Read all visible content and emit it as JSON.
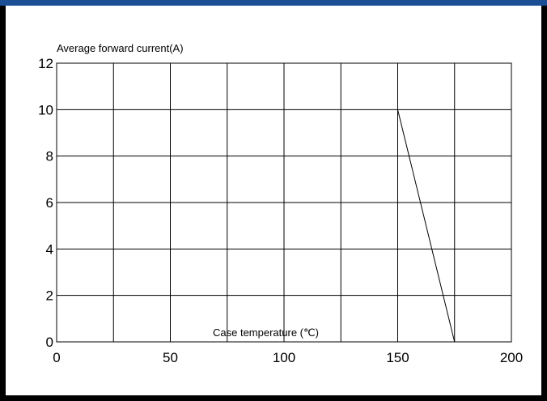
{
  "chart_data": {
    "type": "line",
    "title": "",
    "ylabel": "Average forward current(A)",
    "xlabel": "Case temperature (℃)",
    "xlim": [
      0,
      200
    ],
    "ylim": [
      0,
      12
    ],
    "x_ticks": [
      0,
      50,
      100,
      150,
      200
    ],
    "y_ticks": [
      0,
      2,
      4,
      6,
      8,
      10,
      12
    ],
    "grid": true,
    "grid_x_step": 25,
    "grid_y_step": 2,
    "series": [
      {
        "x": [
          150,
          175
        ],
        "y": [
          10,
          0
        ],
        "color": "#000000"
      }
    ]
  }
}
